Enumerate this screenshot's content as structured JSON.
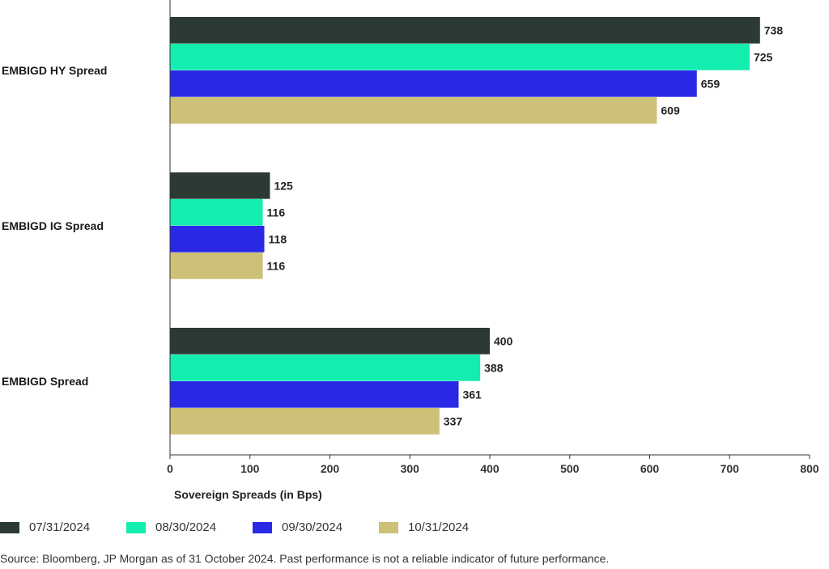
{
  "chart_data": {
    "type": "bar",
    "orientation": "horizontal",
    "categories": [
      "EMBIGD HY Spread",
      "EMBIGD IG Spread",
      "EMBIGD Spread"
    ],
    "series": [
      {
        "name": "07/31/2024",
        "color": "#2b3a33",
        "values": [
          738,
          125,
          400
        ]
      },
      {
        "name": "08/30/2024",
        "color": "#14edb0",
        "values": [
          725,
          116,
          388
        ]
      },
      {
        "name": "09/30/2024",
        "color": "#2a2ae6",
        "values": [
          659,
          118,
          361
        ]
      },
      {
        "name": "10/31/2024",
        "color": "#cdc077",
        "values": [
          609,
          116,
          337
        ]
      }
    ],
    "xlabel": "Sovereign Spreads (in Bps)",
    "xlim": [
      0,
      800
    ],
    "xticks": [
      0,
      100,
      200,
      300,
      400,
      500,
      600,
      700,
      800
    ],
    "legend_position": "bottom-left",
    "grid": false,
    "data_labels": true
  },
  "source_note": "Source: Bloomberg, JP Morgan as of 31 October 2024. Past performance is not a reliable indicator of future performance."
}
